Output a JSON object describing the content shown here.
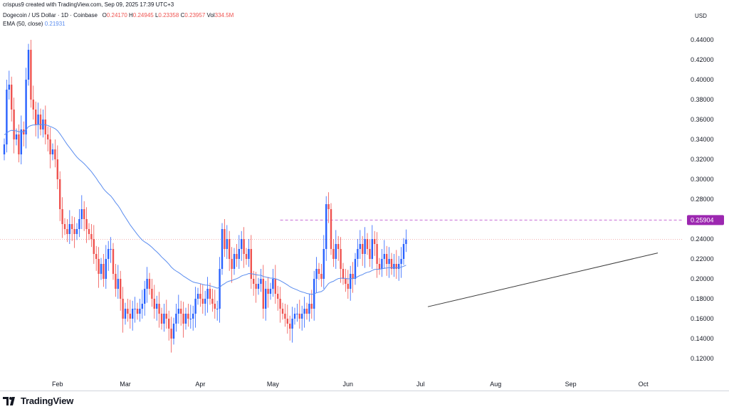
{
  "header": {
    "attribution": "crispus9 created with TradingView.com, Sep 09, 2025 17:39 UTC+3",
    "symbol": "Dogecoin / US Dollar · 1D · Coinbase",
    "o_label": "O",
    "o_value": "0.24170",
    "h_label": "H",
    "h_value": "0.24945",
    "l_label": "L",
    "l_value": "0.23358",
    "c_label": "C",
    "c_value": "0.23957",
    "vol_label": "Vol",
    "vol_value": "334.5M",
    "ema_label": "EMA (50, close)",
    "ema_value": "0.21931"
  },
  "currency": "USD",
  "brand": "TradingView",
  "colors": {
    "up": "#2962ff",
    "down": "#ef5350",
    "ema": "#5b8def",
    "resistance": "#c86ad6",
    "resistance_label_bg": "#9c27b0",
    "trendline": "#3a3a3a",
    "price_line": "#ef9a9a",
    "axis_text": "#131722"
  },
  "chart_data": {
    "type": "candlestick",
    "title": "Dogecoin / US Dollar · 1D · Coinbase",
    "xlabel": "",
    "ylabel": "USD",
    "ylim": [
      0.105,
      0.455
    ],
    "grid": false,
    "y_ticks": [
      "0.44000",
      "0.42000",
      "0.40000",
      "0.38000",
      "0.36000",
      "0.34000",
      "0.32000",
      "0.30000",
      "0.28000",
      "0.26000",
      "0.24000",
      "0.22000",
      "0.20000",
      "0.18000",
      "0.16000",
      "0.14000",
      "0.12000"
    ],
    "x_ticks": [
      {
        "label": "Feb",
        "day": 22
      },
      {
        "label": "Mar",
        "day": 50
      },
      {
        "label": "Apr",
        "day": 81
      },
      {
        "label": "May",
        "day": 111
      },
      {
        "label": "Jun",
        "day": 142
      },
      {
        "label": "Jul",
        "day": 172
      },
      {
        "label": "Aug",
        "day": 203
      },
      {
        "label": "Sep",
        "day": 234
      },
      {
        "label": "Oct",
        "day": 264
      }
    ],
    "resistance": {
      "value": 0.25904,
      "label": "0.25904",
      "from_day": 114
    },
    "trendline": {
      "from": {
        "day": 175,
        "value": 0.172
      },
      "to": {
        "day": 270,
        "value": 0.226
      }
    },
    "last_close": 0.23957,
    "series": [
      {
        "name": "Dogecoin / US Dollar",
        "close": [
          0.335,
          0.39,
          0.395,
          0.37,
          0.34,
          0.345,
          0.325,
          0.35,
          0.345,
          0.4,
          0.43,
          0.38,
          0.37,
          0.355,
          0.365,
          0.35,
          0.36,
          0.345,
          0.34,
          0.325,
          0.33,
          0.32,
          0.3,
          0.27,
          0.255,
          0.25,
          0.245,
          0.255,
          0.25,
          0.245,
          0.25,
          0.26,
          0.27,
          0.26,
          0.25,
          0.245,
          0.24,
          0.225,
          0.22,
          0.205,
          0.215,
          0.2,
          0.22,
          0.23,
          0.23,
          0.205,
          0.19,
          0.2,
          0.18,
          0.16,
          0.17,
          0.165,
          0.16,
          0.17,
          0.17,
          0.165,
          0.17,
          0.175,
          0.19,
          0.2,
          0.19,
          0.18,
          0.17,
          0.175,
          0.165,
          0.155,
          0.165,
          0.16,
          0.15,
          0.14,
          0.155,
          0.165,
          0.17,
          0.165,
          0.155,
          0.165,
          0.16,
          0.16,
          0.165,
          0.18,
          0.185,
          0.18,
          0.175,
          0.18,
          0.19,
          0.18,
          0.175,
          0.17,
          0.17,
          0.21,
          0.25,
          0.23,
          0.24,
          0.22,
          0.21,
          0.225,
          0.22,
          0.23,
          0.24,
          0.225,
          0.22,
          0.23,
          0.2,
          0.195,
          0.19,
          0.195,
          0.2,
          0.17,
          0.19,
          0.185,
          0.19,
          0.2,
          0.185,
          0.18,
          0.17,
          0.165,
          0.16,
          0.155,
          0.15,
          0.16,
          0.165,
          0.165,
          0.16,
          0.165,
          0.17,
          0.165,
          0.175,
          0.17,
          0.2,
          0.21,
          0.205,
          0.2,
          0.23,
          0.275,
          0.27,
          0.23,
          0.22,
          0.235,
          0.23,
          0.21,
          0.2,
          0.195,
          0.19,
          0.205,
          0.2,
          0.22,
          0.23,
          0.235,
          0.225,
          0.24,
          0.23,
          0.22,
          0.24,
          0.235,
          0.215,
          0.21,
          0.22,
          0.225,
          0.215,
          0.22,
          0.21,
          0.215,
          0.21,
          0.215,
          0.22,
          0.235,
          0.23957
        ]
      },
      {
        "name": "EMA (50, close)",
        "values_note": "computed"
      }
    ]
  }
}
